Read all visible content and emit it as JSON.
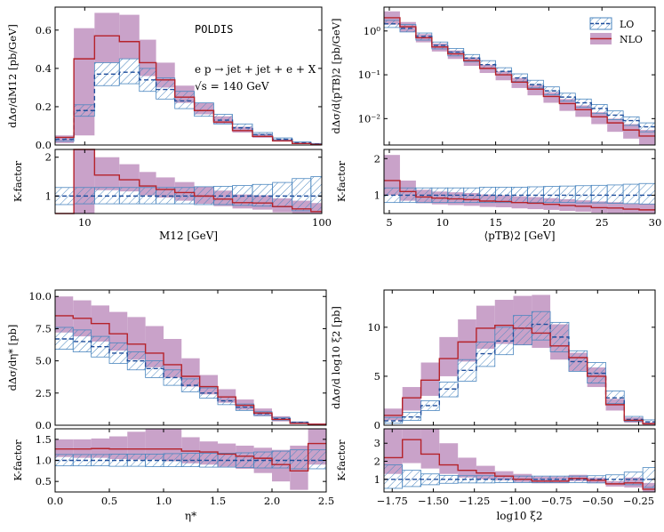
{
  "figure": {
    "title": "POLDIS",
    "process": "e p → jet + jet + e + X",
    "energy": "√s = 140 GeV",
    "legend": [
      "LO",
      "NLO"
    ]
  },
  "colors": {
    "lo_line": "#1f4e9c",
    "lo_hatch": "#4a86bf",
    "nlo_line": "#b5232b",
    "nlo_band": "#c9a2c9"
  },
  "chart_data": [
    {
      "id": "m12",
      "type": "step",
      "xscale": "log",
      "xlabel": "M12 [GeV]",
      "ylabel": "dΔσ/dM12 [pb/GeV]",
      "xlim": [
        7.5,
        100
      ],
      "ylim": [
        0,
        0.72
      ],
      "yticks": [
        0.0,
        0.2,
        0.4,
        0.6
      ],
      "ytick_labels": [
        "0.0",
        "0.2",
        "0.4",
        "0.6"
      ],
      "xticks": [
        10,
        100
      ],
      "xtick_labels": [
        "10",
        "100"
      ],
      "edges": [
        7.5,
        9,
        11,
        14,
        17,
        20,
        24,
        29,
        35,
        42,
        51,
        62,
        75,
        90,
        100
      ],
      "lo": [
        0.03,
        0.18,
        0.37,
        0.38,
        0.34,
        0.29,
        0.23,
        0.18,
        0.13,
        0.09,
        0.055,
        0.03,
        0.012,
        0.006
      ],
      "lo_lo": [
        0.02,
        0.15,
        0.31,
        0.32,
        0.28,
        0.24,
        0.19,
        0.15,
        0.11,
        0.075,
        0.045,
        0.024,
        0.008,
        0.004
      ],
      "lo_hi": [
        0.04,
        0.21,
        0.43,
        0.45,
        0.4,
        0.35,
        0.28,
        0.22,
        0.16,
        0.11,
        0.065,
        0.037,
        0.016,
        0.008
      ],
      "nlo": [
        0.04,
        0.45,
        0.57,
        0.54,
        0.43,
        0.34,
        0.25,
        0.18,
        0.12,
        0.075,
        0.045,
        0.022,
        0.008,
        0.003
      ],
      "nlo_lo": [
        0.01,
        0.05,
        0.43,
        0.45,
        0.36,
        0.3,
        0.22,
        0.16,
        0.11,
        0.065,
        0.038,
        0.018,
        0.006,
        0.002
      ],
      "nlo_hi": [
        0.05,
        0.61,
        0.69,
        0.68,
        0.55,
        0.43,
        0.31,
        0.22,
        0.15,
        0.095,
        0.058,
        0.03,
        0.012,
        0.005
      ],
      "ratio": {
        "ylabel": "K-factor",
        "ylim": [
          0.55,
          2.2
        ],
        "yticks": [
          1,
          2
        ],
        "ytick_labels": [
          "1",
          "2"
        ],
        "nlo": [
          0.01,
          2.45,
          1.54,
          1.42,
          1.26,
          1.17,
          1.09,
          1.0,
          0.92,
          0.83,
          0.82,
          0.73,
          0.67,
          0.6
        ],
        "nlo_lo": [
          0.01,
          0.5,
          1.15,
          1.12,
          1.02,
          0.96,
          0.88,
          0.8,
          0.74,
          0.68,
          0.65,
          0.58,
          0.52,
          0.45
        ],
        "nlo_hi": [
          0.01,
          2.45,
          2.0,
          1.82,
          1.62,
          1.48,
          1.36,
          1.24,
          1.14,
          1.04,
          1.02,
          0.94,
          0.88,
          0.82
        ],
        "lo_lo": [
          0.78,
          0.8,
          0.8,
          0.8,
          0.8,
          0.8,
          0.8,
          0.78,
          0.78,
          0.76,
          0.74,
          0.72,
          0.62,
          0.6
        ],
        "lo_hi": [
          1.22,
          1.22,
          1.22,
          1.22,
          1.22,
          1.22,
          1.22,
          1.24,
          1.25,
          1.27,
          1.3,
          1.35,
          1.45,
          1.5
        ]
      }
    },
    {
      "id": "pt",
      "type": "step",
      "xscale": "linear",
      "yscale": "log",
      "xlabel": "⟨pTB⟩2 [GeV]",
      "ylabel": "dΔσ/d⟨pTB⟩2 [pb/GeV]",
      "xlim": [
        4.5,
        30
      ],
      "ylim": [
        0.0025,
        3.5
      ],
      "yticks": [
        0.01,
        0.1,
        1
      ],
      "ytick_labels": [
        "10⁻²",
        "10⁻¹",
        "10⁰"
      ],
      "xticks": [
        5,
        10,
        15,
        20,
        25,
        30
      ],
      "xtick_labels": [
        "5",
        "10",
        "15",
        "20",
        "25",
        "30"
      ],
      "edges": [
        4.5,
        6,
        7.5,
        9,
        10.5,
        12,
        13.5,
        15,
        16.5,
        18,
        19.5,
        21,
        22.5,
        24,
        25.5,
        27,
        28.5,
        30
      ],
      "lo": [
        1.45,
        1.15,
        0.75,
        0.47,
        0.33,
        0.24,
        0.17,
        0.12,
        0.085,
        0.06,
        0.043,
        0.031,
        0.023,
        0.017,
        0.012,
        0.009,
        0.0065
      ],
      "lo_lo": [
        1.2,
        0.95,
        0.62,
        0.39,
        0.27,
        0.2,
        0.14,
        0.1,
        0.07,
        0.05,
        0.035,
        0.025,
        0.018,
        0.013,
        0.0095,
        0.007,
        0.005
      ],
      "lo_hi": [
        1.75,
        1.4,
        0.9,
        0.56,
        0.4,
        0.29,
        0.21,
        0.145,
        0.105,
        0.075,
        0.053,
        0.038,
        0.028,
        0.021,
        0.015,
        0.011,
        0.008
      ],
      "nlo": [
        2.0,
        1.25,
        0.7,
        0.43,
        0.3,
        0.21,
        0.14,
        0.1,
        0.068,
        0.047,
        0.032,
        0.022,
        0.016,
        0.011,
        0.008,
        0.0055,
        0.004
      ],
      "nlo_lo": [
        1.4,
        0.95,
        0.55,
        0.34,
        0.23,
        0.16,
        0.11,
        0.075,
        0.05,
        0.034,
        0.023,
        0.015,
        0.011,
        0.0075,
        0.005,
        0.0035,
        0.0025
      ],
      "nlo_hi": [
        2.8,
        1.6,
        0.85,
        0.52,
        0.36,
        0.25,
        0.17,
        0.12,
        0.085,
        0.058,
        0.04,
        0.028,
        0.02,
        0.014,
        0.01,
        0.0075,
        0.0055
      ],
      "ratio": {
        "ylabel": "K-factor",
        "ylim": [
          0.5,
          2.25
        ],
        "yticks": [
          1,
          2
        ],
        "ytick_labels": [
          "1",
          "2"
        ],
        "nlo": [
          1.4,
          1.1,
          0.95,
          0.92,
          0.9,
          0.88,
          0.84,
          0.83,
          0.8,
          0.78,
          0.75,
          0.72,
          0.7,
          0.66,
          0.65,
          0.62,
          0.6
        ],
        "nlo_lo": [
          1.0,
          0.85,
          0.78,
          0.75,
          0.73,
          0.71,
          0.68,
          0.67,
          0.64,
          0.62,
          0.6,
          0.57,
          0.55,
          0.52,
          0.5,
          0.48,
          0.46
        ],
        "nlo_hi": [
          2.1,
          1.4,
          1.15,
          1.1,
          1.08,
          1.06,
          1.02,
          1.0,
          0.97,
          0.95,
          0.92,
          0.89,
          0.86,
          0.83,
          0.81,
          0.78,
          0.76
        ],
        "lo_lo": [
          0.8,
          0.8,
          0.8,
          0.8,
          0.8,
          0.8,
          0.8,
          0.8,
          0.8,
          0.8,
          0.8,
          0.8,
          0.79,
          0.79,
          0.78,
          0.77,
          0.76
        ],
        "lo_hi": [
          1.2,
          1.2,
          1.2,
          1.2,
          1.2,
          1.2,
          1.22,
          1.22,
          1.22,
          1.23,
          1.24,
          1.25,
          1.26,
          1.27,
          1.28,
          1.3,
          1.32
        ]
      }
    },
    {
      "id": "eta",
      "type": "step",
      "xscale": "linear",
      "xlabel": "η*",
      "ylabel": "dΔσ/dη* [pb]",
      "xlim": [
        0,
        2.5
      ],
      "ylim": [
        0,
        10.5
      ],
      "yticks": [
        0,
        2.5,
        5,
        7.5,
        10
      ],
      "ytick_labels": [
        "0.0",
        "2.5",
        "5.0",
        "7.5",
        "10.0"
      ],
      "xticks": [
        0,
        0.5,
        1,
        1.5,
        2,
        2.5
      ],
      "xtick_labels": [
        "0.0",
        "0.5",
        "1.0",
        "1.5",
        "2.0",
        "2.5"
      ],
      "edges": [
        0,
        0.166,
        0.333,
        0.5,
        0.666,
        0.833,
        1.0,
        1.166,
        1.333,
        1.5,
        1.666,
        1.833,
        2.0,
        2.166,
        2.333,
        2.5
      ],
      "lo": [
        6.7,
        6.5,
        6.1,
        5.6,
        5.0,
        4.4,
        3.7,
        3.1,
        2.5,
        1.9,
        1.4,
        0.9,
        0.5,
        0.2,
        0.05
      ],
      "lo_lo": [
        5.9,
        5.7,
        5.3,
        4.8,
        4.3,
        3.7,
        3.1,
        2.6,
        2.1,
        1.6,
        1.15,
        0.75,
        0.4,
        0.15,
        0.03
      ],
      "lo_hi": [
        7.6,
        7.4,
        6.9,
        6.4,
        5.7,
        5.0,
        4.3,
        3.6,
        2.9,
        2.2,
        1.65,
        1.05,
        0.6,
        0.25,
        0.07
      ],
      "nlo": [
        8.5,
        8.3,
        7.9,
        7.1,
        6.3,
        5.6,
        4.7,
        3.8,
        3.0,
        2.2,
        1.55,
        0.95,
        0.45,
        0.15,
        0.07
      ],
      "nlo_lo": [
        7.2,
        6.9,
        6.5,
        5.8,
        5.1,
        4.5,
        3.7,
        3.0,
        2.4,
        1.75,
        1.2,
        0.7,
        0.3,
        0.08,
        0.03
      ],
      "nlo_hi": [
        10.0,
        9.7,
        9.3,
        8.8,
        8.4,
        7.7,
        6.7,
        5.2,
        3.9,
        2.8,
        2.0,
        1.3,
        0.7,
        0.3,
        0.15
      ],
      "ratio": {
        "ylabel": "K-factor",
        "ylim": [
          0.25,
          1.75
        ],
        "yticks": [
          0.5,
          1.0,
          1.5
        ],
        "ytick_labels": [
          "0.5",
          "1.0",
          "1.5"
        ],
        "nlo": [
          1.27,
          1.27,
          1.28,
          1.27,
          1.27,
          1.27,
          1.27,
          1.22,
          1.2,
          1.15,
          1.1,
          1.05,
          0.9,
          0.75,
          1.4
        ],
        "nlo_lo": [
          1.08,
          1.06,
          1.06,
          1.03,
          1.02,
          1.02,
          0.98,
          0.93,
          0.9,
          0.85,
          0.8,
          0.7,
          0.5,
          0.3,
          0.9
        ],
        "nlo_hi": [
          1.5,
          1.5,
          1.52,
          1.57,
          1.68,
          1.75,
          1.8,
          1.55,
          1.45,
          1.4,
          1.35,
          1.3,
          1.25,
          1.35,
          1.75
        ],
        "lo_lo": [
          0.87,
          0.87,
          0.87,
          0.86,
          0.86,
          0.85,
          0.85,
          0.85,
          0.84,
          0.84,
          0.83,
          0.82,
          0.82,
          0.8,
          0.8
        ],
        "lo_hi": [
          1.14,
          1.14,
          1.14,
          1.15,
          1.15,
          1.15,
          1.16,
          1.17,
          1.17,
          1.17,
          1.18,
          1.2,
          1.22,
          1.25,
          1.25
        ]
      }
    },
    {
      "id": "xi",
      "type": "step",
      "xscale": "linear",
      "xlabel": "log10 ξ2",
      "ylabel": "dΔσ/d log10 ξ2 [pb]",
      "xlim": [
        -1.8,
        -0.15
      ],
      "ylim": [
        0,
        13.8
      ],
      "yticks": [
        0,
        5,
        10
      ],
      "ytick_labels": [
        "0",
        "5",
        "10"
      ],
      "xticks": [
        -1.75,
        -1.5,
        -1.25,
        -1.0,
        -0.75,
        -0.5,
        -0.25
      ],
      "xtick_labels": [
        "−1.75",
        "−1.50",
        "−1.25",
        "−1.00",
        "−0.75",
        "−0.50",
        "−0.25"
      ],
      "edges": [
        -1.8,
        -1.688,
        -1.575,
        -1.463,
        -1.35,
        -1.238,
        -1.125,
        -1.013,
        -0.9,
        -0.788,
        -0.675,
        -0.563,
        -0.45,
        -0.338,
        -0.225,
        -0.15
      ],
      "lo": [
        0.45,
        0.85,
        2.0,
        3.7,
        5.6,
        7.3,
        8.6,
        9.9,
        10.3,
        9.0,
        6.5,
        5.3,
        2.8,
        0.6,
        0.35
      ],
      "lo_lo": [
        0.2,
        0.5,
        1.5,
        2.9,
        4.5,
        6.0,
        7.2,
        8.2,
        8.7,
        7.5,
        5.5,
        4.3,
        2.2,
        0.4,
        0.15
      ],
      "lo_hi": [
        0.8,
        1.3,
        2.5,
        4.4,
        6.7,
        8.5,
        10.0,
        11.2,
        11.6,
        10.5,
        7.6,
        6.4,
        3.5,
        0.9,
        0.55
      ],
      "nlo": [
        1.0,
        2.8,
        4.6,
        6.8,
        8.5,
        9.9,
        10.2,
        9.9,
        9.4,
        8.1,
        6.9,
        5.0,
        2.1,
        0.5,
        0.15
      ],
      "nlo_lo": [
        0.5,
        1.5,
        3.0,
        5.0,
        6.5,
        7.8,
        8.3,
        8.2,
        7.9,
        6.7,
        5.5,
        3.9,
        1.5,
        0.25,
        0.05
      ],
      "nlo_hi": [
        1.7,
        3.9,
        6.4,
        9.0,
        10.8,
        12.2,
        12.8,
        13.2,
        13.3,
        10.3,
        7.4,
        5.9,
        2.7,
        0.8,
        0.3
      ],
      "ratio": {
        "ylabel": "K-factor",
        "ylim": [
          0.3,
          3.8
        ],
        "yticks": [
          1,
          2,
          3
        ],
        "ytick_labels": [
          "1",
          "2",
          "3"
        ],
        "nlo": [
          2.2,
          3.2,
          2.4,
          1.8,
          1.5,
          1.35,
          1.18,
          1.0,
          0.9,
          0.9,
          1.05,
          0.95,
          0.75,
          0.8,
          0.45
        ],
        "nlo_lo": [
          1.3,
          1.9,
          1.6,
          1.3,
          1.1,
          1.0,
          0.95,
          0.85,
          0.78,
          0.78,
          0.9,
          0.8,
          0.6,
          0.55,
          0.3
        ],
        "nlo_hi": [
          3.8,
          3.8,
          3.8,
          3.0,
          2.2,
          1.75,
          1.45,
          1.3,
          1.15,
          1.15,
          1.25,
          1.1,
          0.9,
          1.1,
          0.8
        ],
        "lo_lo": [
          0.5,
          0.6,
          0.7,
          0.78,
          0.8,
          0.8,
          0.82,
          0.82,
          0.82,
          0.82,
          0.82,
          0.8,
          0.75,
          0.7,
          0.55
        ],
        "lo_hi": [
          1.8,
          1.5,
          1.3,
          1.22,
          1.2,
          1.2,
          1.18,
          1.18,
          1.18,
          1.18,
          1.18,
          1.2,
          1.25,
          1.4,
          1.65
        ]
      }
    }
  ]
}
